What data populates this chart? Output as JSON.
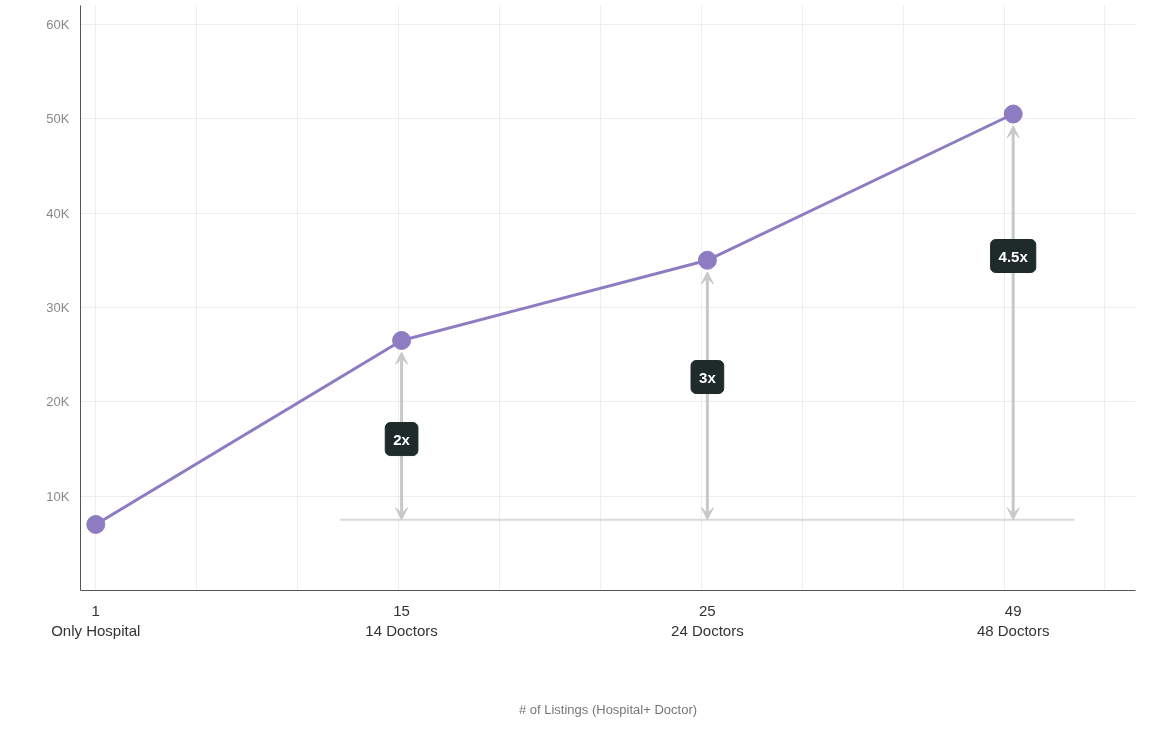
{
  "chart_data": {
    "type": "line",
    "xlabel": "# of Listings (Hospital+ Doctor)",
    "categories": [
      "1\nOnly Hospital",
      "15\n14 Doctors",
      "25\n24 Doctors",
      "49\n48 Doctors"
    ],
    "series": [
      {
        "color": "#8e7cc3",
        "values": [
          7000,
          26500,
          35000,
          50500
        ]
      }
    ],
    "ylim": [
      0,
      62000
    ],
    "yticks": [
      {
        "value": 10000,
        "label": "10K"
      },
      {
        "value": 20000,
        "label": "20K"
      },
      {
        "value": 30000,
        "label": "30K"
      },
      {
        "value": 40000,
        "label": "40K"
      },
      {
        "value": 50000,
        "label": "50K"
      },
      {
        "value": 60000,
        "label": "60K"
      }
    ],
    "ref_lines": [
      {
        "axis": "y",
        "value": 7500,
        "color": "#d9d9d9"
      }
    ],
    "annotations": [
      "2x",
      "3x",
      "4.5x"
    ],
    "grid": true,
    "marker": "circle",
    "line_style": "solid"
  }
}
